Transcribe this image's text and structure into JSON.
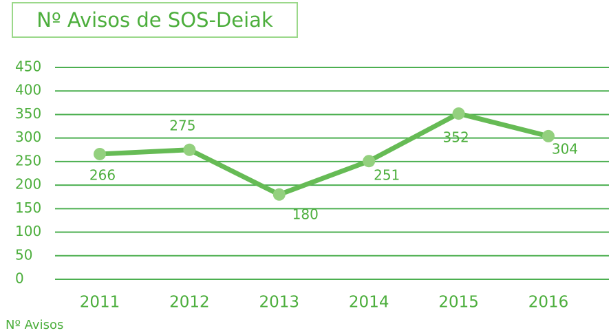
{
  "chart_data": {
    "type": "line",
    "title": "Nº Avisos de SOS-Deiak",
    "categories": [
      "2011",
      "2012",
      "2013",
      "2014",
      "2015",
      "2016"
    ],
    "series": [
      {
        "name": "Nº Avisos",
        "color": "#66bb55",
        "values": [
          266,
          275,
          180,
          251,
          352,
          304
        ]
      }
    ],
    "ylim": [
      0,
      450
    ],
    "yticks": [
      0,
      50,
      100,
      150,
      200,
      250,
      300,
      350,
      400,
      450
    ],
    "grid": true
  }
}
